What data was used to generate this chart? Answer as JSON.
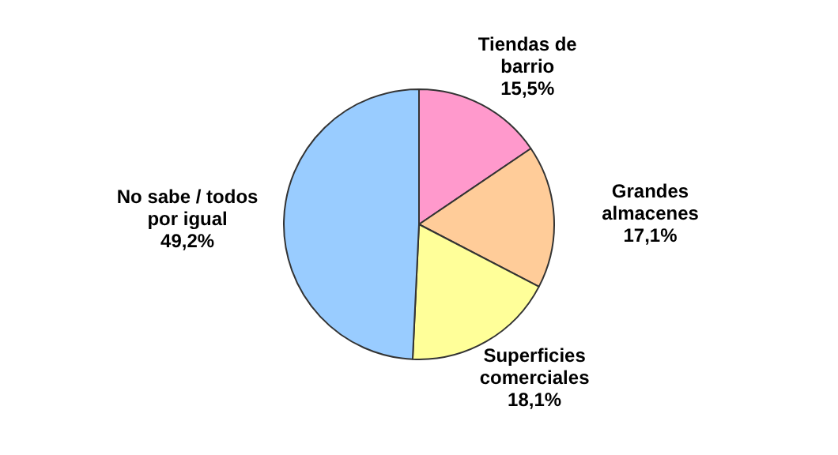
{
  "chart_data": {
    "type": "pie",
    "categories": [
      "Tiendas de barrio",
      "Grandes almacenes",
      "Superficies comerciales",
      "No sabe / todos por igual"
    ],
    "values": [
      15.5,
      17.1,
      18.1,
      49.2
    ],
    "value_labels": [
      "15,5%",
      "17,1%",
      "18,1%",
      "49,2%"
    ],
    "colors": [
      "#ff99cc",
      "#ffcc99",
      "#ffff99",
      "#99ccff"
    ],
    "legend": false
  }
}
